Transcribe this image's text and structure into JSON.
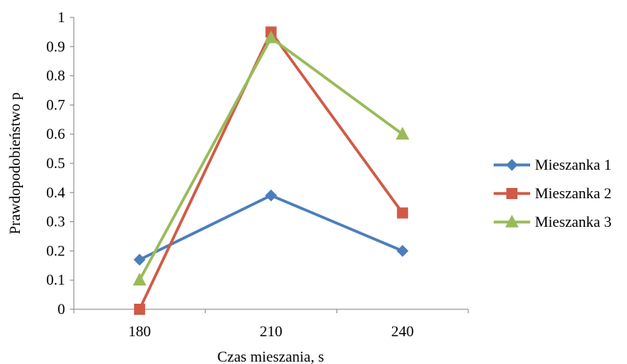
{
  "chart_data": {
    "type": "line",
    "title": "",
    "xlabel": "Czas mieszania, s",
    "ylabel": "Prawdopodobieństwo p",
    "x": [
      180,
      210,
      240
    ],
    "x_tick_labels": [
      "180",
      "210",
      "240"
    ],
    "ylim": [
      0,
      1
    ],
    "y_tick_labels": [
      "0",
      "0.1",
      "0.2",
      "0.3",
      "0.4",
      "0.5",
      "0.6",
      "0.7",
      "0.8",
      "0.9",
      "1"
    ],
    "grid": false,
    "legend_position": "right",
    "series": [
      {
        "name": "Mieszanka 1",
        "values": [
          0.17,
          0.39,
          0.2
        ],
        "color": "#4a7ebb",
        "marker": "diamond"
      },
      {
        "name": "Mieszanka 2",
        "values": [
          0.0,
          0.95,
          0.33
        ],
        "color": "#d05a46",
        "marker": "square"
      },
      {
        "name": "Mieszanka 3",
        "values": [
          0.1,
          0.93,
          0.6
        ],
        "color": "#98bb59",
        "marker": "triangle"
      }
    ]
  }
}
